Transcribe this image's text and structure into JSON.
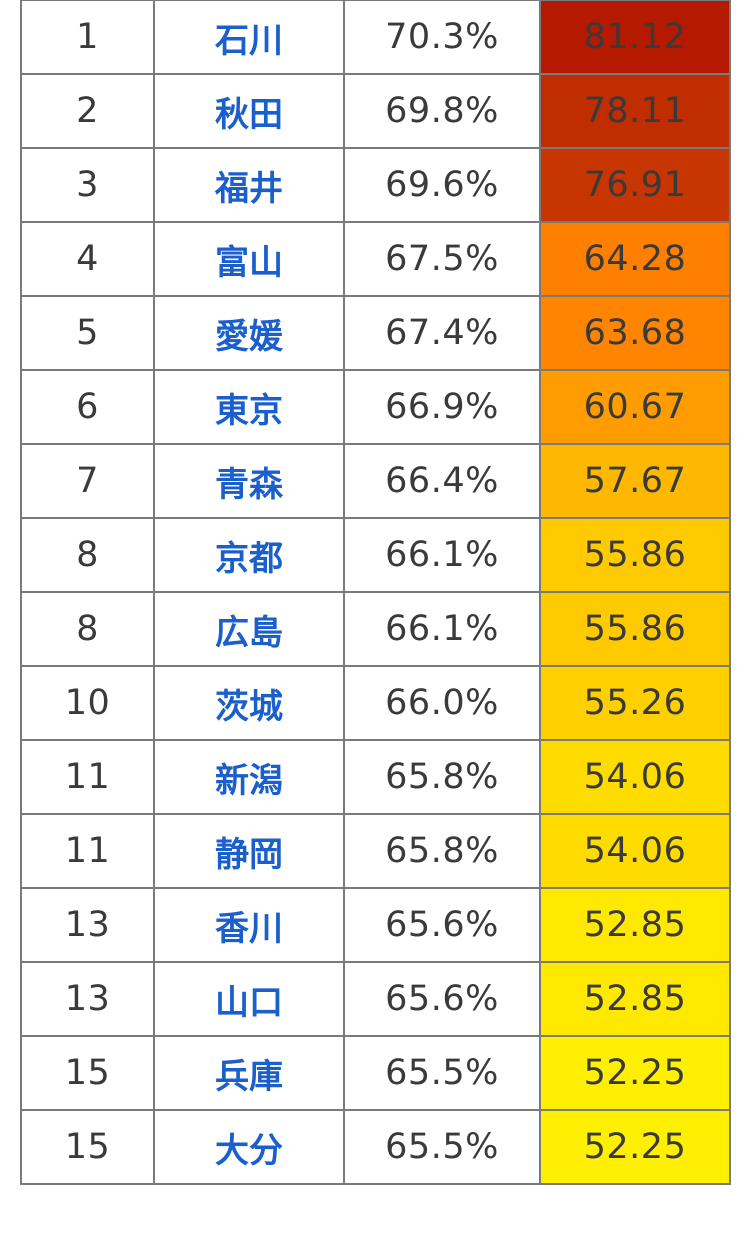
{
  "rows": [
    {
      "rank": "1",
      "prefecture": "石川",
      "rate": "70.3%",
      "score": "81.12",
      "score_bg": "#b51a00",
      "score_text": "light"
    },
    {
      "rank": "2",
      "prefecture": "秋田",
      "rate": "69.8%",
      "score": "78.11",
      "score_bg": "#c02d00",
      "score_text": "light"
    },
    {
      "rank": "3",
      "prefecture": "福井",
      "rate": "69.6%",
      "score": "76.91",
      "score_bg": "#c73500",
      "score_text": "light"
    },
    {
      "rank": "4",
      "prefecture": "富山",
      "rate": "67.5%",
      "score": "64.28",
      "score_bg": "#ff7f00",
      "score_text": "light"
    },
    {
      "rank": "5",
      "prefecture": "愛媛",
      "rate": "67.4%",
      "score": "63.68",
      "score_bg": "#ff8400",
      "score_text": "light"
    },
    {
      "rank": "6",
      "prefecture": "東京",
      "rate": "66.9%",
      "score": "60.67",
      "score_bg": "#ff9d00",
      "score_text": "dark"
    },
    {
      "rank": "7",
      "prefecture": "青森",
      "rate": "66.4%",
      "score": "57.67",
      "score_bg": "#ffb800",
      "score_text": "dark"
    },
    {
      "rank": "8",
      "prefecture": "京都",
      "rate": "66.1%",
      "score": "55.86",
      "score_bg": "#ffcb00",
      "score_text": "dark"
    },
    {
      "rank": "8",
      "prefecture": "広島",
      "rate": "66.1%",
      "score": "55.86",
      "score_bg": "#ffcb00",
      "score_text": "dark"
    },
    {
      "rank": "10",
      "prefecture": "茨城",
      "rate": "66.0%",
      "score": "55.26",
      "score_bg": "#ffd000",
      "score_text": "dark"
    },
    {
      "rank": "11",
      "prefecture": "新潟",
      "rate": "65.8%",
      "score": "54.06",
      "score_bg": "#ffdc00",
      "score_text": "dark"
    },
    {
      "rank": "11",
      "prefecture": "静岡",
      "rate": "65.8%",
      "score": "54.06",
      "score_bg": "#ffdc00",
      "score_text": "dark"
    },
    {
      "rank": "13",
      "prefecture": "香川",
      "rate": "65.6%",
      "score": "52.85",
      "score_bg": "#ffe900",
      "score_text": "dark"
    },
    {
      "rank": "13",
      "prefecture": "山口",
      "rate": "65.6%",
      "score": "52.85",
      "score_bg": "#ffe900",
      "score_text": "dark"
    },
    {
      "rank": "15",
      "prefecture": "兵庫",
      "rate": "65.5%",
      "score": "52.25",
      "score_bg": "#ffef00",
      "score_text": "dark"
    },
    {
      "rank": "15",
      "prefecture": "大分",
      "rate": "65.5%",
      "score": "52.25",
      "score_bg": "#ffef00",
      "score_text": "dark"
    }
  ],
  "colors": {
    "prefecture_link": "#1a5fcc",
    "grid_border": "#7a7a7a",
    "body_text": "#3a3a3a"
  }
}
